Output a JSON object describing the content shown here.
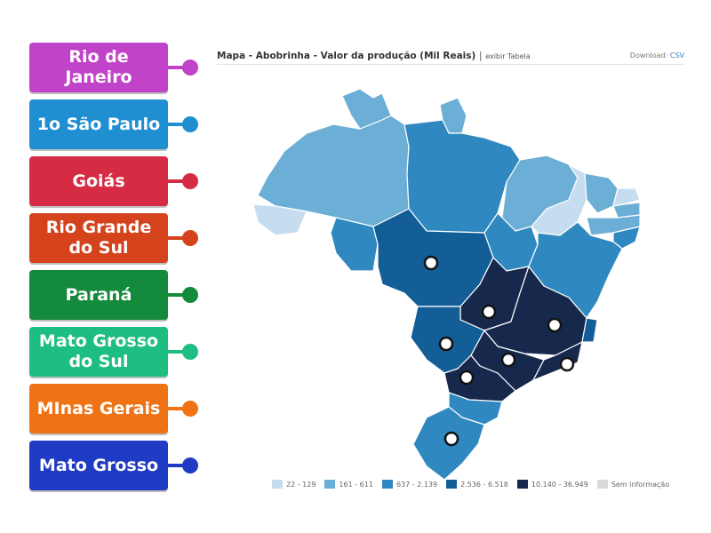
{
  "labels": [
    {
      "text": "Rio de Janeiro",
      "color": "#c143c9",
      "lines": [
        "Rio de",
        "Janeiro"
      ]
    },
    {
      "text": "1o São Paulo",
      "color": "#1f8fd1",
      "lines": [
        "1o São Paulo"
      ]
    },
    {
      "text": "Goiás",
      "color": "#d62b44",
      "lines": [
        "Goiás"
      ]
    },
    {
      "text": "Rio Grande do Sul",
      "color": "#d4431b",
      "lines": [
        "Rio Grande",
        "do Sul"
      ]
    },
    {
      "text": "Paraná",
      "color": "#148a3c",
      "lines": [
        "Paraná"
      ]
    },
    {
      "text": "Mato Grosso do Sul",
      "color": "#1ebd82",
      "lines": [
        "Mato Grosso",
        "do Sul"
      ]
    },
    {
      "text": "MInas Gerais",
      "color": "#ef7314",
      "lines": [
        "MInas Gerais"
      ]
    },
    {
      "text": "Mato Grosso",
      "color": "#1f3ac4",
      "lines": [
        "Mato Grosso"
      ]
    }
  ],
  "map": {
    "title": "Mapa - Abobrinha - Valor da produção (Mil Reais)",
    "separator": "|",
    "table_link": "exibir Tabela",
    "download_label": "Download:",
    "download_link": "CSV"
  },
  "legend": [
    {
      "label": "22 - 129",
      "color": "#c6dcef"
    },
    {
      "label": "161 - 611",
      "color": "#6baed6"
    },
    {
      "label": "637 - 2.139",
      "color": "#2f89c0"
    },
    {
      "label": "2.536 - 6.518",
      "color": "#135e96"
    },
    {
      "label": "10.140 - 36.949",
      "color": "#16294d"
    },
    {
      "label": "Sem informação",
      "color": "#d9d9d9"
    }
  ]
}
